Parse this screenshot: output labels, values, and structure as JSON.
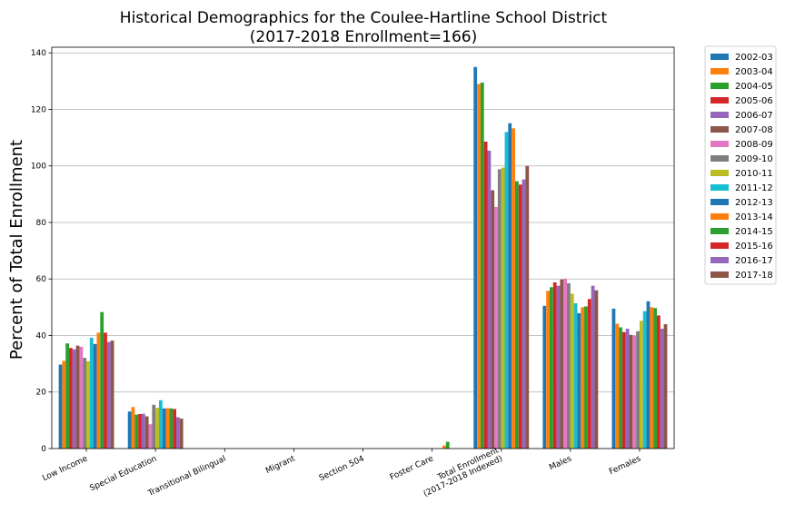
{
  "chart_data": {
    "type": "bar",
    "title": "Historical Demographics for the Coulee-Hartline School District",
    "subtitle": "(2017-2018 Enrollment=166)",
    "xlabel": "",
    "ylabel": "Percent of Total Enrollment",
    "ylim": [
      0,
      142
    ],
    "yticks": [
      0,
      20,
      40,
      60,
      80,
      100,
      120,
      140
    ],
    "grid": true,
    "legend_position": "outside-top-right",
    "categories": [
      "Low Income",
      "Special Education",
      "Transitional Bilingual",
      "Migrant",
      "Section 504",
      "Foster Care",
      "Total Enrollment\n(2017-2018 Indexed)",
      "Males",
      "Females"
    ],
    "series": [
      {
        "name": "2002-03",
        "color": "#1f77b4",
        "values": [
          29.7,
          13.1,
          0,
          0,
          0,
          0,
          135.0,
          50.5,
          49.5
        ]
      },
      {
        "name": "2003-04",
        "color": "#ff7f0e",
        "values": [
          31.0,
          14.7,
          0,
          0,
          0,
          0,
          129.0,
          55.8,
          44.2
        ]
      },
      {
        "name": "2004-05",
        "color": "#2ca02c",
        "values": [
          37.2,
          12.0,
          0,
          0,
          0,
          0,
          129.5,
          57.1,
          42.9
        ]
      },
      {
        "name": "2005-06",
        "color": "#d62728",
        "values": [
          35.6,
          12.2,
          0,
          0,
          0,
          0,
          108.6,
          58.8,
          41.2
        ]
      },
      {
        "name": "2006-07",
        "color": "#9467bd",
        "values": [
          35.1,
          12.3,
          0,
          0,
          0,
          0,
          105.4,
          57.6,
          42.4
        ]
      },
      {
        "name": "2007-08",
        "color": "#8c564b",
        "values": [
          36.4,
          11.4,
          0,
          0,
          0,
          0,
          91.4,
          59.8,
          40.2
        ]
      },
      {
        "name": "2008-09",
        "color": "#e377c2",
        "values": [
          36.0,
          8.6,
          0,
          0,
          0,
          0,
          85.5,
          60.1,
          39.9
        ]
      },
      {
        "name": "2009-10",
        "color": "#7f7f7f",
        "values": [
          32.1,
          15.5,
          0,
          0,
          0,
          0,
          98.8,
          58.5,
          41.5
        ]
      },
      {
        "name": "2010-11",
        "color": "#bcbd22",
        "values": [
          30.9,
          14.4,
          0,
          0,
          0,
          0,
          99.4,
          54.8,
          45.2
        ]
      },
      {
        "name": "2011-12",
        "color": "#17becf",
        "values": [
          39.2,
          17.1,
          0,
          0,
          0,
          0,
          112.0,
          51.4,
          48.6
        ]
      },
      {
        "name": "2012-13",
        "color": "#1f77b4",
        "values": [
          37.0,
          14.2,
          0,
          0,
          0,
          0,
          115.1,
          47.9,
          52.1
        ]
      },
      {
        "name": "2013-14",
        "color": "#ff7f0e",
        "values": [
          41.0,
          14.3,
          0,
          0,
          0,
          1.1,
          113.3,
          50.0,
          50.0
        ]
      },
      {
        "name": "2014-15",
        "color": "#2ca02c",
        "values": [
          48.3,
          14.2,
          0,
          0,
          0,
          2.4,
          94.6,
          50.3,
          49.7
        ]
      },
      {
        "name": "2015-16",
        "color": "#d62728",
        "values": [
          41.0,
          14.0,
          0,
          0,
          0,
          0,
          93.4,
          52.9,
          47.1
        ]
      },
      {
        "name": "2016-17",
        "color": "#9467bd",
        "values": [
          37.7,
          11.1,
          0,
          0,
          0,
          0,
          95.2,
          57.6,
          42.4
        ]
      },
      {
        "name": "2017-18",
        "color": "#8c564b",
        "values": [
          38.2,
          10.6,
          0,
          0,
          0,
          0,
          100.0,
          56.0,
          44.0
        ]
      }
    ]
  }
}
